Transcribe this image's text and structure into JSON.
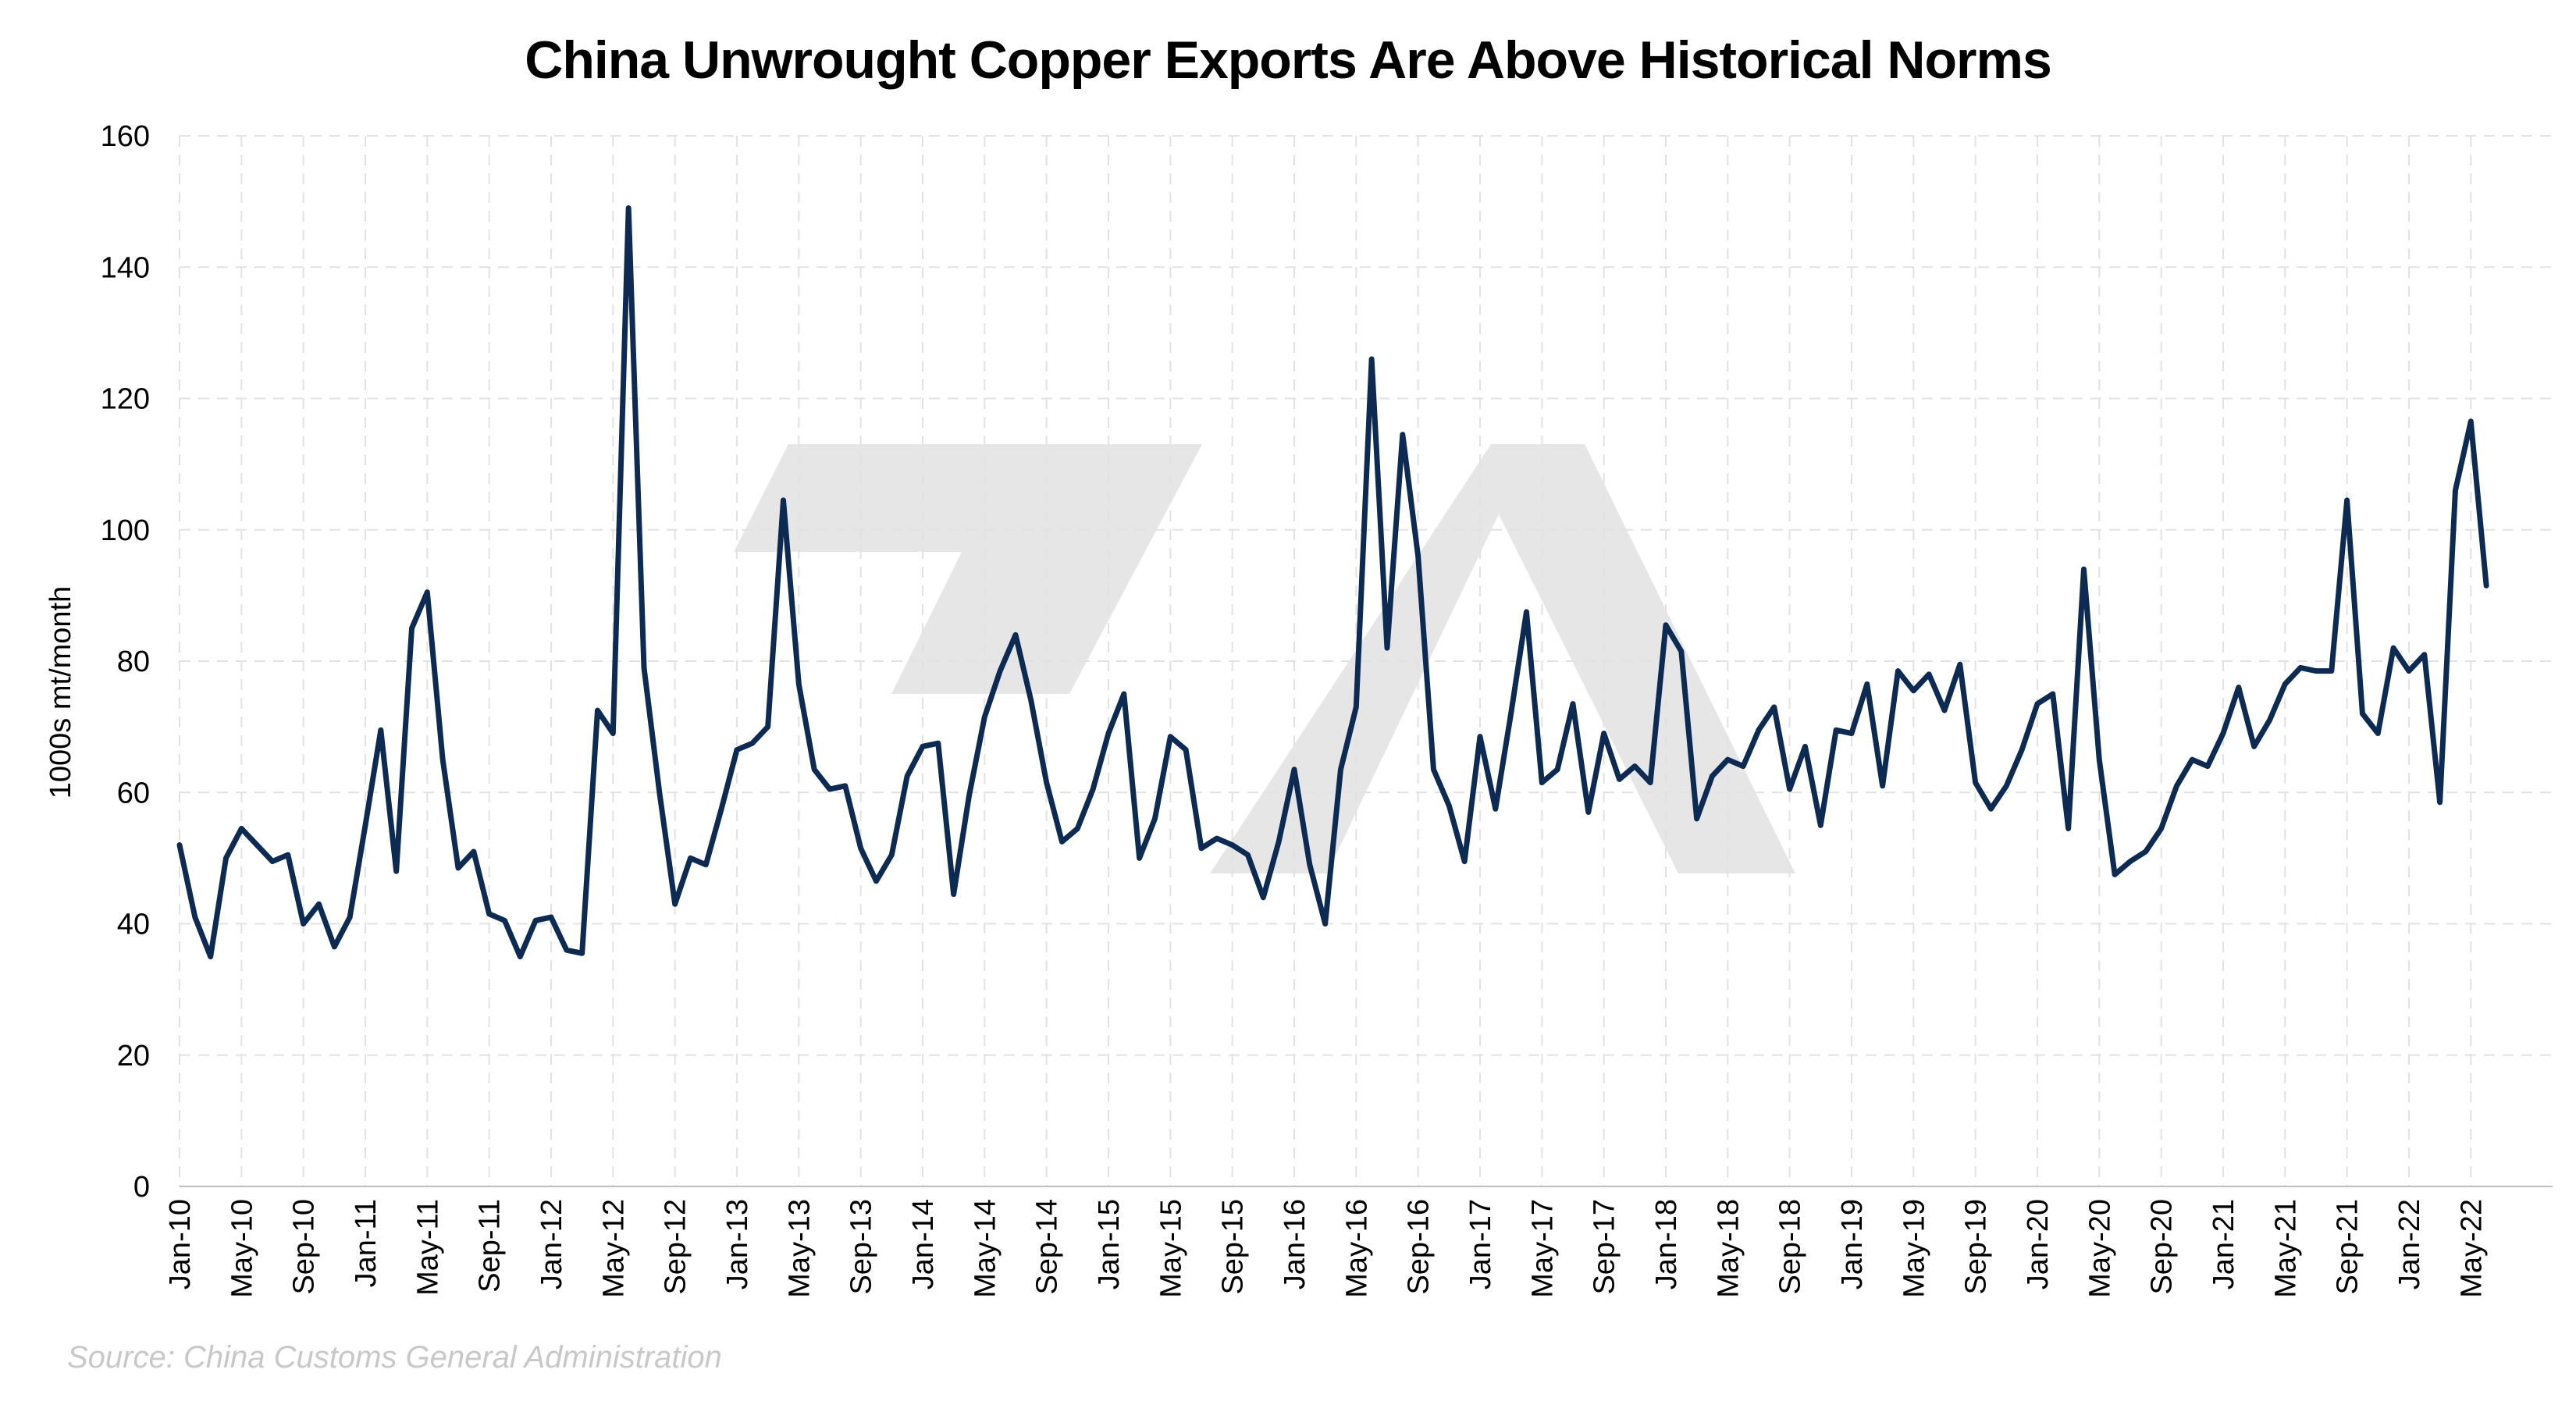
{
  "colors": {
    "line": "#0d2b52",
    "grid": "#e2e2e2",
    "axis": "#bfbfbf",
    "watermark": "#e6e6e6",
    "source": "#c8c8c8"
  },
  "watermark_icon": "logo-watermark",
  "source": "Source: China Customs General Administration",
  "chart_data": {
    "type": "line",
    "title": "China Unwrought Copper Exports Are Above Historical Norms",
    "ylabel": "1000s mt/month",
    "xlabel": "",
    "ylim": [
      0,
      160
    ],
    "yticks": [
      0,
      20,
      40,
      60,
      80,
      100,
      120,
      140,
      160
    ],
    "grid": true,
    "legend": "none",
    "x_tick_labels": [
      "Jan-10",
      "May-10",
      "Sep-10",
      "Jan-11",
      "May-11",
      "Sep-11",
      "Jan-12",
      "May-12",
      "Sep-12",
      "Jan-13",
      "May-13",
      "Sep-13",
      "Jan-14",
      "May-14",
      "Sep-14",
      "Jan-15",
      "May-15",
      "Sep-15",
      "Jan-16",
      "May-16",
      "Sep-16",
      "Jan-17",
      "May-17",
      "Sep-17",
      "Jan-18",
      "May-18",
      "Sep-18",
      "Jan-19",
      "May-19",
      "Sep-19",
      "Jan-20",
      "May-20",
      "Sep-20",
      "Jan-21",
      "May-21",
      "Sep-21",
      "Jan-22",
      "May-22"
    ],
    "x": [
      "Jan-10",
      "Feb-10",
      "Mar-10",
      "Apr-10",
      "May-10",
      "Jun-10",
      "Jul-10",
      "Aug-10",
      "Sep-10",
      "Oct-10",
      "Nov-10",
      "Dec-10",
      "Jan-11",
      "Feb-11",
      "Mar-11",
      "Apr-11",
      "May-11",
      "Jun-11",
      "Jul-11",
      "Aug-11",
      "Sep-11",
      "Oct-11",
      "Nov-11",
      "Dec-11",
      "Jan-12",
      "Feb-12",
      "Mar-12",
      "Apr-12",
      "May-12",
      "Jun-12",
      "Jul-12",
      "Aug-12",
      "Sep-12",
      "Oct-12",
      "Nov-12",
      "Dec-12",
      "Jan-13",
      "Feb-13",
      "Mar-13",
      "Apr-13",
      "May-13",
      "Jun-13",
      "Jul-13",
      "Aug-13",
      "Sep-13",
      "Oct-13",
      "Nov-13",
      "Dec-13",
      "Jan-14",
      "Feb-14",
      "Mar-14",
      "Apr-14",
      "May-14",
      "Jun-14",
      "Jul-14",
      "Aug-14",
      "Sep-14",
      "Oct-14",
      "Nov-14",
      "Dec-14",
      "Jan-15",
      "Feb-15",
      "Mar-15",
      "Apr-15",
      "May-15",
      "Jun-15",
      "Jul-15",
      "Aug-15",
      "Sep-15",
      "Oct-15",
      "Nov-15",
      "Dec-15",
      "Jan-16",
      "Feb-16",
      "Mar-16",
      "Apr-16",
      "May-16",
      "Jun-16",
      "Jul-16",
      "Aug-16",
      "Sep-16",
      "Oct-16",
      "Nov-16",
      "Dec-16",
      "Jan-17",
      "Feb-17",
      "Mar-17",
      "Apr-17",
      "May-17",
      "Jun-17",
      "Jul-17",
      "Aug-17",
      "Sep-17",
      "Oct-17",
      "Nov-17",
      "Dec-17",
      "Jan-18",
      "Feb-18",
      "Mar-18",
      "Apr-18",
      "May-18",
      "Jun-18",
      "Jul-18",
      "Aug-18",
      "Sep-18",
      "Oct-18",
      "Nov-18",
      "Dec-18",
      "Jan-19",
      "Feb-19",
      "Mar-19",
      "Apr-19",
      "May-19",
      "Jun-19",
      "Jul-19",
      "Aug-19",
      "Sep-19",
      "Oct-19",
      "Nov-19",
      "Dec-19",
      "Jan-20",
      "Feb-20",
      "Mar-20",
      "Apr-20",
      "May-20",
      "Jun-20",
      "Jul-20",
      "Aug-20",
      "Sep-20",
      "Oct-20",
      "Nov-20",
      "Dec-20",
      "Jan-21",
      "Feb-21",
      "Mar-21",
      "Apr-21",
      "May-21",
      "Jun-21",
      "Jul-21",
      "Aug-21",
      "Sep-21",
      "Oct-21",
      "Nov-21",
      "Dec-21",
      "Jan-22",
      "Feb-22",
      "Mar-22",
      "Apr-22",
      "May-22",
      "Jun-22"
    ],
    "series": [
      {
        "values": [
          52,
          41,
          35,
          50,
          54.5,
          52,
          49.5,
          50.5,
          40,
          43,
          36.5,
          41,
          55,
          69.5,
          48,
          85,
          90.5,
          65,
          48.5,
          51,
          41.5,
          40.5,
          35,
          40.5,
          41,
          36,
          35.5,
          72.5,
          69,
          149,
          79,
          60,
          43,
          50,
          49,
          57.5,
          66.5,
          67.5,
          70,
          104.5,
          76.5,
          63.5,
          60.5,
          61,
          51.5,
          46.5,
          50.5,
          62.5,
          67,
          67.5,
          44.5,
          59.5,
          71.5,
          78.5,
          84,
          74,
          61.5,
          52.5,
          54.5,
          60.5,
          69,
          75,
          50,
          56,
          68.5,
          66.5,
          51.5,
          53,
          52,
          50.5,
          44,
          52.5,
          63.5,
          49,
          40,
          63.5,
          73,
          126,
          82,
          114.5,
          96,
          63.5,
          58,
          49.5,
          68.5,
          57.5,
          72,
          87.5,
          61.5,
          63.5,
          73.5,
          57,
          69,
          62,
          64,
          61.5,
          85.5,
          81.5,
          56,
          62.5,
          65,
          64,
          69.5,
          73,
          60.5,
          67,
          55,
          69.5,
          69,
          76.5,
          61,
          78.5,
          75.5,
          78,
          72.5,
          79.5,
          61.5,
          57.5,
          61,
          66.5,
          73.5,
          75,
          54.5,
          94,
          65,
          47.5,
          49.5,
          51,
          54.5,
          61,
          65,
          64,
          69,
          76,
          67,
          71,
          76.5,
          79,
          78.5,
          78.5,
          104.5,
          72,
          69,
          82,
          78.5,
          81,
          58.5,
          106,
          116.5,
          91.5
        ]
      }
    ]
  }
}
